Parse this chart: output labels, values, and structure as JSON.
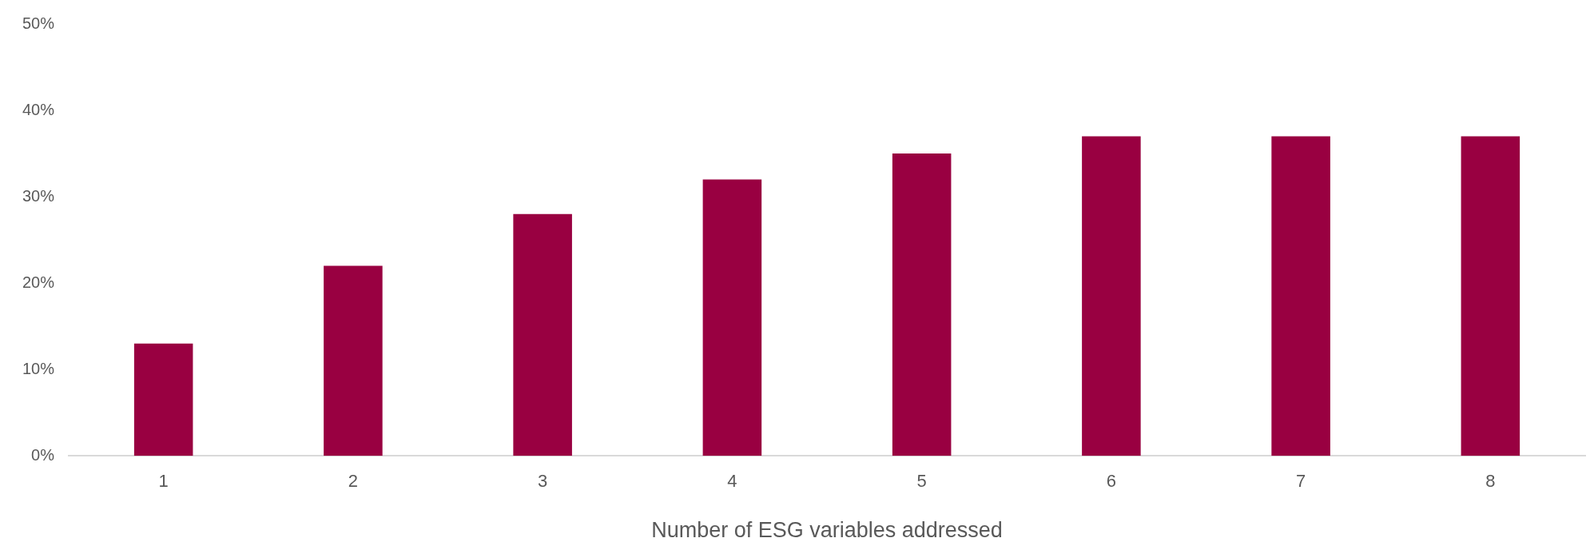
{
  "chart_data": {
    "type": "bar",
    "xlabel": "Number of ESG variables addressed",
    "categories": [
      "1",
      "2",
      "3",
      "4",
      "5",
      "6",
      "7",
      "8"
    ],
    "values": [
      13,
      22,
      28,
      32,
      35,
      37,
      37,
      37
    ],
    "color": "#990041",
    "ylim": [
      0,
      50
    ],
    "yticks": [
      {
        "value": 0,
        "label": "0%"
      },
      {
        "value": 10,
        "label": "10%"
      },
      {
        "value": 20,
        "label": "20%"
      },
      {
        "value": 30,
        "label": "30%"
      },
      {
        "value": 40,
        "label": "40%"
      },
      {
        "value": 50,
        "label": "50%"
      }
    ],
    "grid": false,
    "legend": false
  }
}
